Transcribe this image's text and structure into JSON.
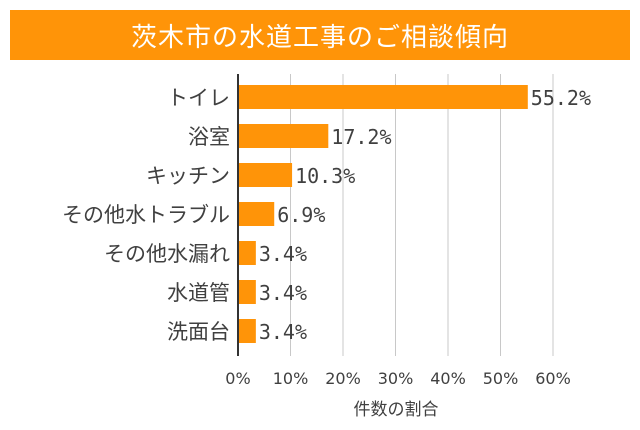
{
  "chart_data": {
    "type": "bar",
    "orientation": "horizontal",
    "title": "茨木市の水道工事のご相談傾向",
    "categories": [
      "トイレ",
      "浴室",
      "キッチン",
      "その他水トラブル",
      "その他水漏れ",
      "水道管",
      "洗面台"
    ],
    "values": [
      55.2,
      17.2,
      10.3,
      6.9,
      3.4,
      3.4,
      3.4
    ],
    "value_labels": [
      "55.2%",
      "17.2%",
      "10.3%",
      "6.9%",
      "3.4%",
      "3.4%",
      "3.4%"
    ],
    "xlabel": "件数の割合",
    "ylabel": "",
    "xlim": [
      0,
      60
    ],
    "x_ticks": [
      0,
      10,
      20,
      30,
      40,
      50,
      60
    ],
    "x_tick_labels": [
      "0%",
      "10%",
      "20%",
      "30%",
      "40%",
      "50%",
      "60%"
    ],
    "grid": "vertical",
    "legend": "none",
    "colors": {
      "accent": "#ff9408",
      "bar": "#ff9408",
      "grid": "#c8c8c8",
      "axis": "#333333",
      "text": "#404040",
      "title_text": "#ffffff"
    }
  }
}
